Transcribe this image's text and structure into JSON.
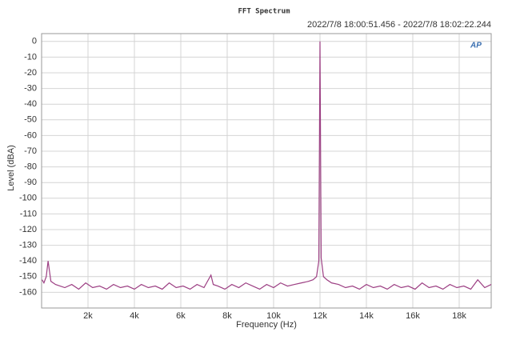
{
  "chart_data": {
    "type": "line",
    "title": "FFT Spectrum",
    "subtitle": "2022/7/8 18:00:51.456 - 2022/7/8 18:02:22.244",
    "logo": "AP",
    "x_label": "Frequency (Hz)",
    "y_label": "Level (dBA)",
    "xlim": [
      0,
      19380
    ],
    "ylim": [
      -170,
      5
    ],
    "xticks": [
      {
        "value": 2000,
        "label": "2k"
      },
      {
        "value": 4000,
        "label": "4k"
      },
      {
        "value": 6000,
        "label": "6k"
      },
      {
        "value": 8000,
        "label": "8k"
      },
      {
        "value": 10000,
        "label": "10k"
      },
      {
        "value": 12000,
        "label": "12k"
      },
      {
        "value": 14000,
        "label": "14k"
      },
      {
        "value": 16000,
        "label": "16k"
      },
      {
        "value": 18000,
        "label": "18k"
      }
    ],
    "yticks": [
      0,
      -10,
      -20,
      -30,
      -40,
      -50,
      -60,
      -70,
      -80,
      -90,
      -100,
      -110,
      -120,
      -130,
      -140,
      -150,
      -160
    ],
    "grid": true,
    "x": [
      20,
      100,
      200,
      280,
      400,
      600,
      800,
      1000,
      1300,
      1600,
      1900,
      2200,
      2500,
      2800,
      3100,
      3400,
      3700,
      4000,
      4300,
      4600,
      4900,
      5200,
      5500,
      5800,
      6100,
      6400,
      6700,
      7000,
      7300,
      7400,
      7600,
      7900,
      8200,
      8500,
      8800,
      9100,
      9400,
      9700,
      10000,
      10300,
      10600,
      10900,
      11200,
      11500,
      11700,
      11850,
      11950,
      12000,
      12050,
      12150,
      12300,
      12500,
      12800,
      13100,
      13400,
      13700,
      14000,
      14300,
      14600,
      14900,
      15200,
      15500,
      15800,
      16100,
      16400,
      16700,
      17000,
      17300,
      17600,
      17900,
      18200,
      18500,
      18800,
      19100,
      19380
    ],
    "series": [
      {
        "color": "#9c3f83",
        "values": [
          -152,
          -154,
          -150,
          -140,
          -153,
          -155,
          -156,
          -157,
          -155,
          -158,
          -154,
          -157,
          -156,
          -158,
          -155,
          -157,
          -156,
          -158,
          -155,
          -157,
          -156,
          -158,
          -154,
          -157,
          -156,
          -158,
          -155,
          -157,
          -149,
          -155,
          -156,
          -158,
          -155,
          -157,
          -154,
          -156,
          -158,
          -155,
          -157,
          -154,
          -156,
          -155,
          -154,
          -153,
          -152,
          -150,
          -140,
          0,
          -138,
          -150,
          -152,
          -154,
          -155,
          -157,
          -156,
          -158,
          -155,
          -157,
          -156,
          -158,
          -155,
          -157,
          -156,
          -158,
          -154,
          -157,
          -156,
          -158,
          -155,
          -157,
          -156,
          -158,
          -152,
          -157,
          -155
        ]
      }
    ]
  }
}
